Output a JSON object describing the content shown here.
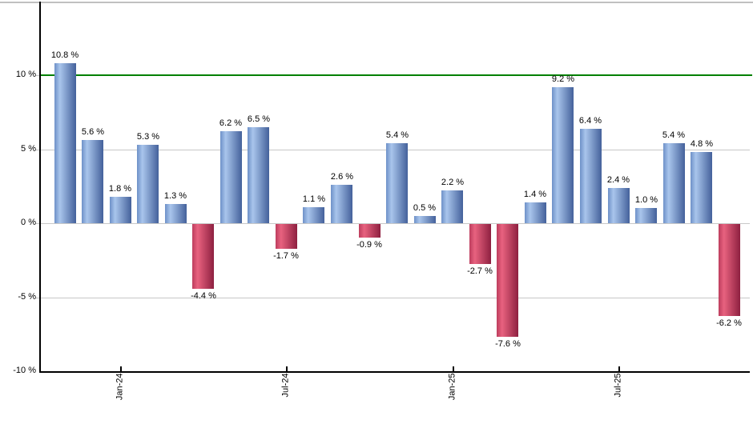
{
  "chart_data": {
    "type": "bar",
    "title": "",
    "unit": "%",
    "bars": [
      {
        "value": 10.8,
        "label": "10.8 %"
      },
      {
        "value": 5.6,
        "label": "5.6 %"
      },
      {
        "value": 1.8,
        "label": "1.8 %"
      },
      {
        "value": 5.3,
        "label": "5.3 %"
      },
      {
        "value": 1.3,
        "label": "1.3 %"
      },
      {
        "value": -4.4,
        "label": "-4.4 %"
      },
      {
        "value": 6.2,
        "label": "6.2 %"
      },
      {
        "value": 6.5,
        "label": "6.5 %"
      },
      {
        "value": -1.7,
        "label": "-1.7 %"
      },
      {
        "value": 1.1,
        "label": "1.1 %"
      },
      {
        "value": 2.6,
        "label": "2.6 %"
      },
      {
        "value": -0.9,
        "label": "-0.9 %"
      },
      {
        "value": 5.4,
        "label": "5.4 %"
      },
      {
        "value": 0.5,
        "label": "0.5 %"
      },
      {
        "value": 2.2,
        "label": "2.2 %"
      },
      {
        "value": -2.7,
        "label": "-2.7 %"
      },
      {
        "value": -7.6,
        "label": "-7.6 %"
      },
      {
        "value": 1.4,
        "label": "1.4 %"
      },
      {
        "value": 9.2,
        "label": "9.2 %"
      },
      {
        "value": 6.4,
        "label": "6.4 %"
      },
      {
        "value": 2.4,
        "label": "2.4 %"
      },
      {
        "value": 1.0,
        "label": "1.0 %"
      },
      {
        "value": 5.4,
        "label": "5.4 %"
      },
      {
        "value": 4.8,
        "label": "4.8 %"
      },
      {
        "value": -6.2,
        "label": "-6.2 %"
      }
    ],
    "x_ticks": [
      {
        "bar_index": 2,
        "label": "Jan-24"
      },
      {
        "bar_index": 8,
        "label": "Jul-24"
      },
      {
        "bar_index": 14,
        "label": "Jan-25"
      },
      {
        "bar_index": 20,
        "label": "Jul-25"
      }
    ],
    "y_ticks": [
      {
        "value": 10,
        "label": "10 %"
      },
      {
        "value": 5,
        "label": "5 %"
      },
      {
        "value": 0,
        "label": "0 %"
      },
      {
        "value": -5,
        "label": "-5 %"
      },
      {
        "value": -10,
        "label": "-10 %"
      }
    ],
    "ylim": [
      -10,
      15
    ],
    "grid": true,
    "legend": false,
    "threshold_value": 10,
    "colors": {
      "positive_bar": [
        "#6e91c8",
        "#a9c5ec",
        "#44619b"
      ],
      "negative_bar": [
        "#bd3d5e",
        "#e8627f",
        "#8e2040"
      ],
      "threshold_line": "#008000",
      "gridline": "#c8c8c8",
      "top_border": "#c0c0c0",
      "axis": "#000000",
      "label_text": "#000000"
    }
  }
}
